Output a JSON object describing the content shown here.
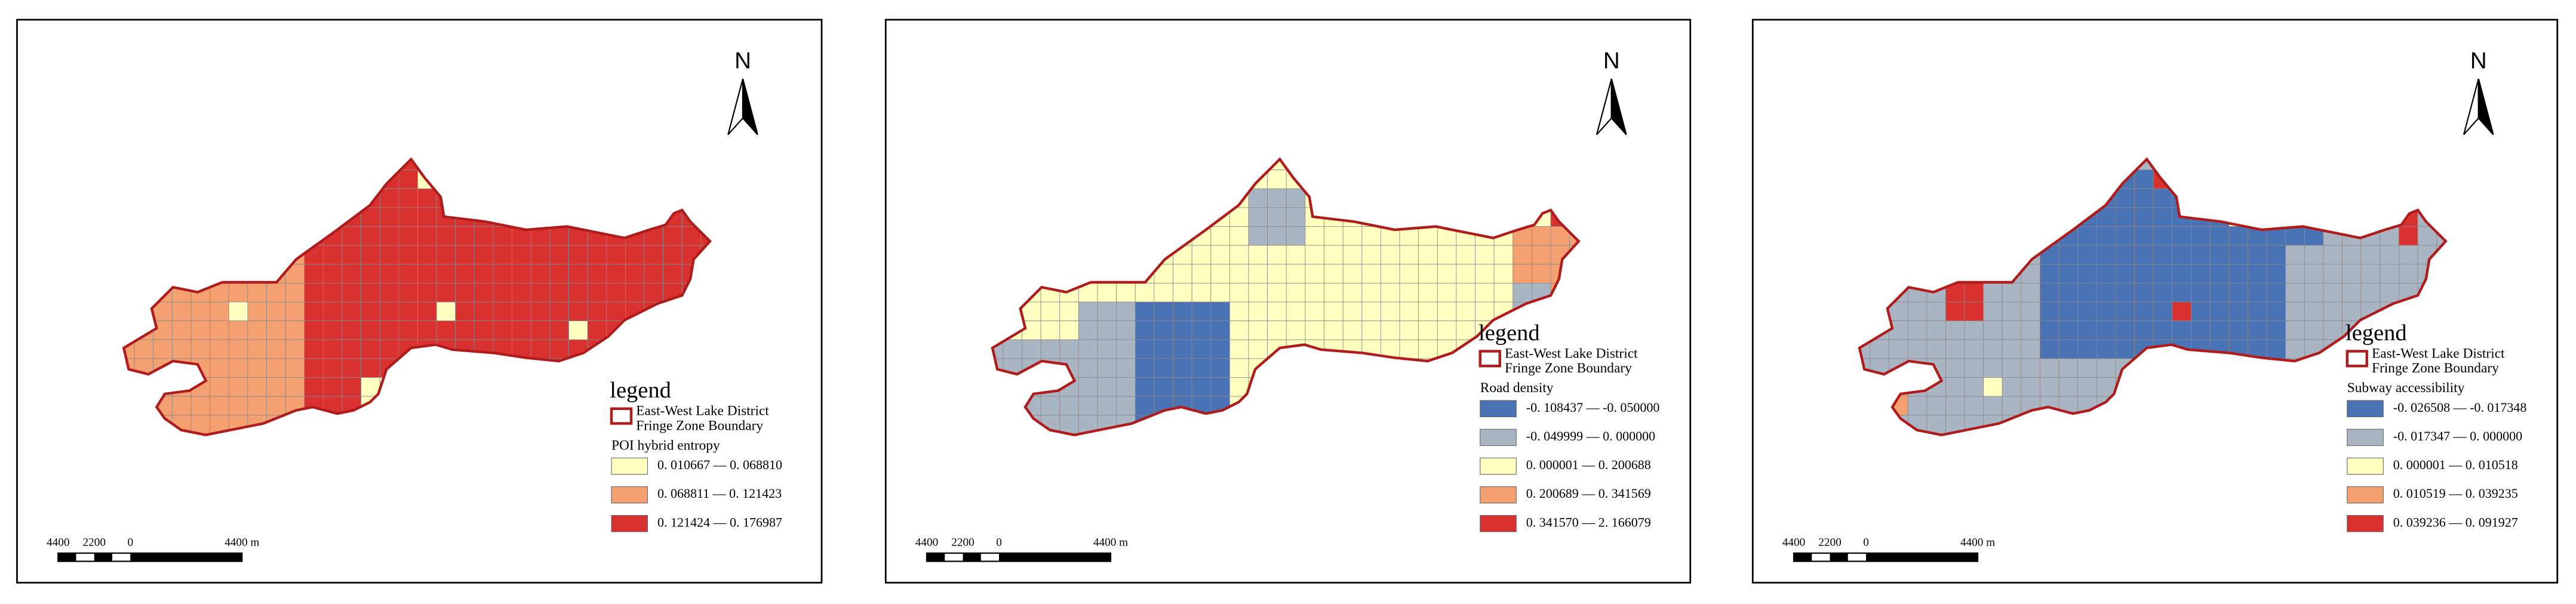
{
  "panels": [
    {
      "north": "N",
      "scale_labels": [
        "4400",
        "2200",
        "0",
        "4400 m"
      ],
      "legend": {
        "title": "legend",
        "boundary_label": [
          "East-West Lake District",
          "Fringe Zone Boundary"
        ],
        "variable": "POI hybrid entropy",
        "classes": [
          {
            "label": "0. 010667 — 0. 068810",
            "color": "#ffffc0"
          },
          {
            "label": "0. 068811 — 0. 121423",
            "color": "#f4a070"
          },
          {
            "label": "0. 121424 — 0. 176987",
            "color": "#d93030"
          }
        ]
      }
    },
    {
      "north": "N",
      "scale_labels": [
        "4400",
        "2200",
        "0",
        "4400 m"
      ],
      "legend": {
        "title": "legend",
        "boundary_label": [
          "East-West Lake District",
          "Fringe Zone Boundary"
        ],
        "variable": "Road density",
        "classes": [
          {
            "label": "-0. 108437 — -0. 050000",
            "color": "#4a73b5"
          },
          {
            "label": "-0. 049999 — 0. 000000",
            "color": "#a9b5c3"
          },
          {
            "label": "0. 000001 — 0. 200688",
            "color": "#ffffc0"
          },
          {
            "label": "0. 200689 — 0. 341569",
            "color": "#f4a070"
          },
          {
            "label": "0. 341570 — 2. 166079",
            "color": "#d93030"
          }
        ]
      }
    },
    {
      "north": "N",
      "scale_labels": [
        "4400",
        "2200",
        "0",
        "4400 m"
      ],
      "legend": {
        "title": "legend",
        "boundary_label": [
          "East-West Lake District",
          "Fringe Zone Boundary"
        ],
        "variable": "Subway accessibility",
        "classes": [
          {
            "label": "-0. 026508 — -0. 017348",
            "color": "#4a73b5"
          },
          {
            "label": "-0. 017347 — 0. 000000",
            "color": "#a9b5c3"
          },
          {
            "label": "0. 000001 — 0. 010518",
            "color": "#ffffc0"
          },
          {
            "label": "0. 010519 — 0. 039235",
            "color": "#f4a070"
          },
          {
            "label": "0. 039236 — 0. 091927",
            "color": "#d93030"
          }
        ]
      }
    }
  ]
}
